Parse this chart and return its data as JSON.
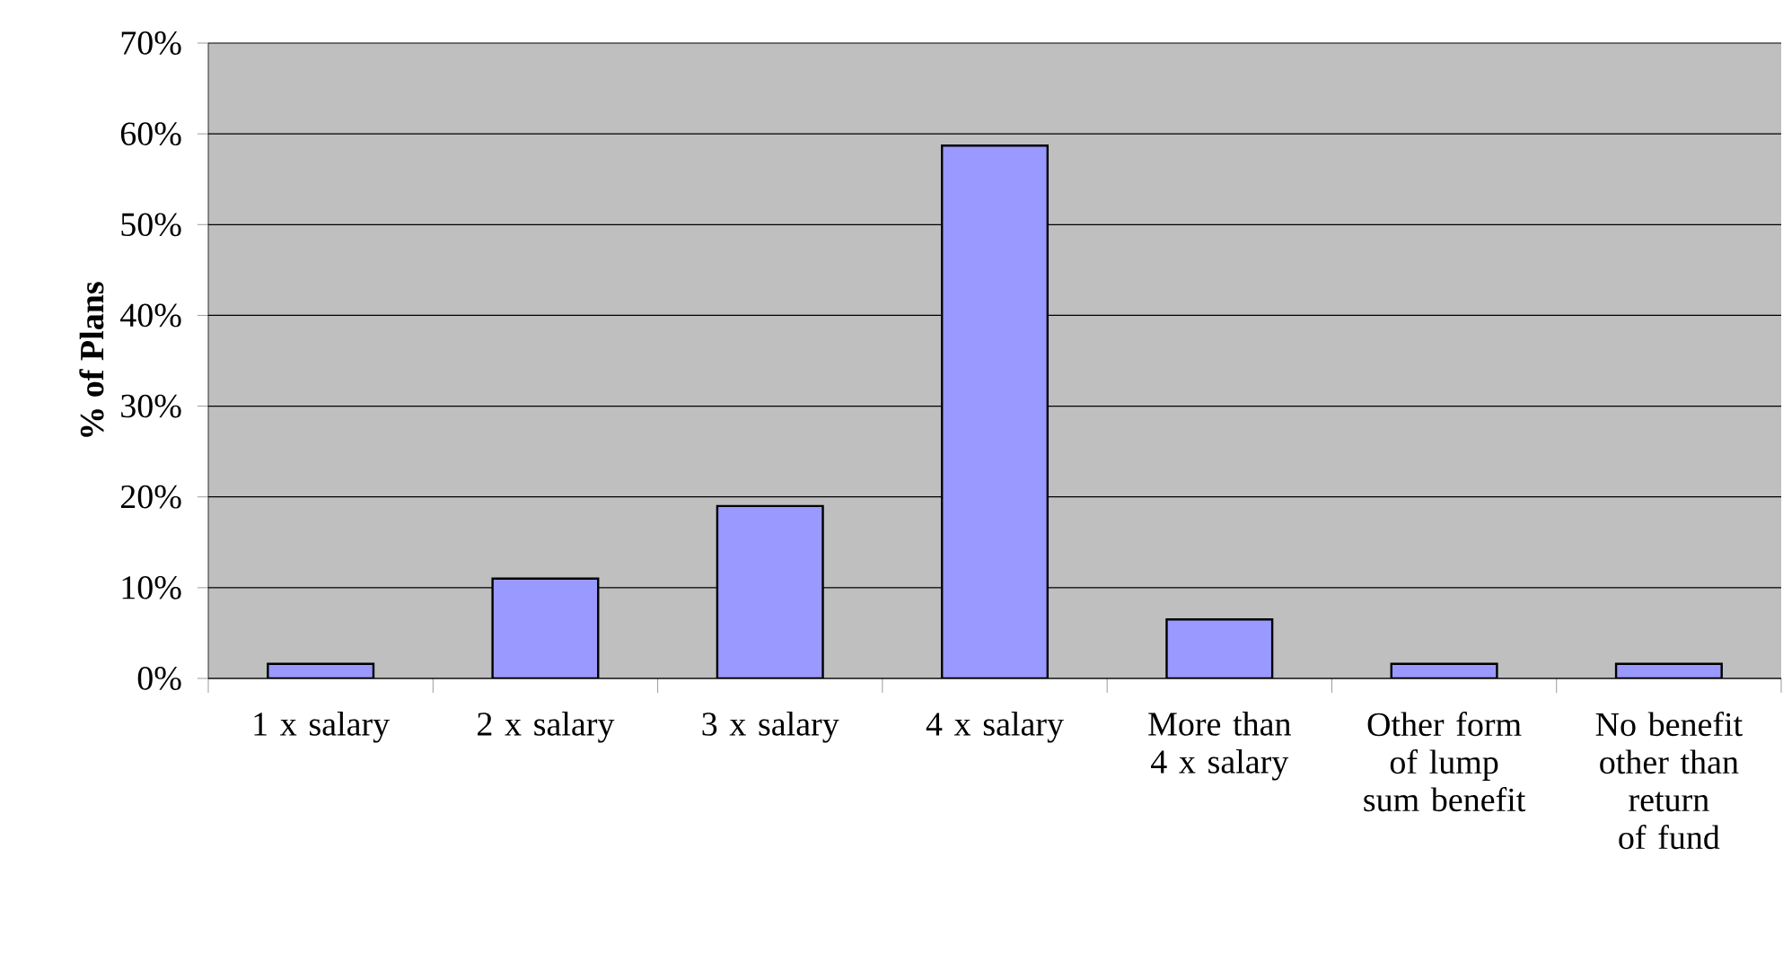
{
  "chart_data": {
    "type": "bar",
    "ylabel": "% of Plans",
    "categories": [
      "1 x salary",
      "2 x salary",
      "3 x salary",
      "4 x salary",
      "More than 4 x salary",
      "Other form of lump sum benefit",
      "No benefit other than return of fund"
    ],
    "values": [
      1.6,
      11,
      19,
      58.7,
      6.5,
      1.6,
      1.6
    ],
    "color": "#9999ff",
    "ylim": [
      0,
      70
    ],
    "yticks": [
      {
        "value": 0,
        "label": "0%"
      },
      {
        "value": 10,
        "label": "10%"
      },
      {
        "value": 20,
        "label": "20%"
      },
      {
        "value": 30,
        "label": "30%"
      },
      {
        "value": 40,
        "label": "40%"
      },
      {
        "value": 50,
        "label": "50%"
      },
      {
        "value": 60,
        "label": "60%"
      },
      {
        "value": 70,
        "label": "70%"
      }
    ],
    "grid": "y"
  }
}
